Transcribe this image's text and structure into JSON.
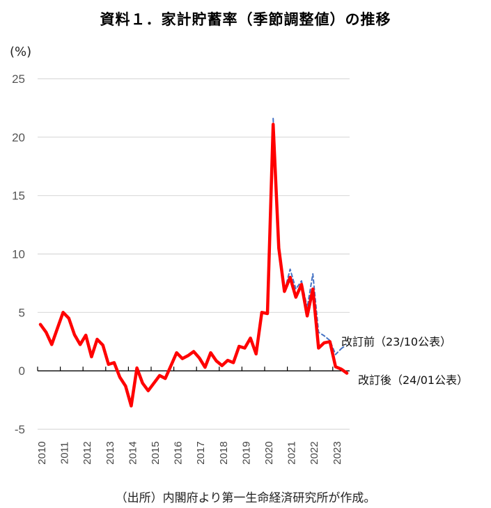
{
  "chart_data": {
    "type": "line",
    "title": "資料１．家計貯蓄率（季節調整値）の推移",
    "ylabel": "(%)",
    "ylim": [
      -5,
      25
    ],
    "yticks": [
      -5,
      0,
      5,
      10,
      15,
      20,
      25
    ],
    "ytick_labels": [
      "-5",
      "0",
      "5",
      "10",
      "15",
      "20",
      "25"
    ],
    "xtick_labels": [
      "2010",
      "2011",
      "2012",
      "2013",
      "2014",
      "2015",
      "2016",
      "2017",
      "2018",
      "2019",
      "2020",
      "2021",
      "2022",
      "2023"
    ],
    "frequency": "quarterly",
    "x_start": "2010Q1",
    "grid": true,
    "series": [
      {
        "name": "改訂後（24/01公表）",
        "color": "#ff0000",
        "style": "solid",
        "start": "2010Q1",
        "values": [
          3.97,
          3.3,
          2.25,
          3.65,
          5.0,
          4.5,
          3.1,
          2.25,
          3.05,
          1.2,
          2.7,
          2.2,
          0.55,
          0.7,
          -0.55,
          -1.3,
          -3.0,
          0.25,
          -1.05,
          -1.7,
          -1.05,
          -0.4,
          -0.65,
          0.45,
          1.55,
          1.05,
          1.3,
          1.65,
          1.1,
          0.3,
          1.55,
          0.85,
          0.45,
          0.9,
          0.7,
          2.1,
          1.95,
          2.8,
          1.45,
          5.0,
          4.9,
          21.1,
          10.5,
          6.8,
          8.0,
          6.3,
          7.4,
          4.7,
          7.0,
          1.95,
          2.4,
          2.5,
          0.35,
          0.15,
          -0.2
        ]
      },
      {
        "name": "改訂前（23/10公表）",
        "color": "#4472c4",
        "style": "dashed",
        "start": "2020Q2",
        "values": [
          21.6,
          10.5,
          6.8,
          8.7,
          7.0,
          7.7,
          5.4,
          8.3,
          3.3,
          3.0,
          2.6,
          1.4,
          1.9
        ]
      }
    ]
  },
  "source": "（出所）内閣府より第一生命経済研究所が作成。"
}
